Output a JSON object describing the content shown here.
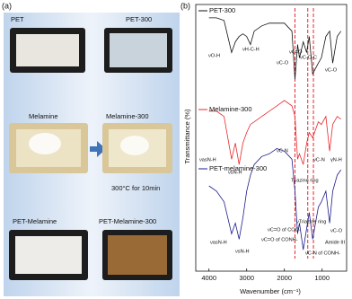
{
  "panel_a": {
    "label": "(a)",
    "samples": [
      "PET",
      "PET-300",
      "Melamine",
      "Melamine-300",
      "PET-Melamine",
      "PET-Melamine-300"
    ],
    "condition": "300°C for 10min"
  },
  "chart_data": {
    "type": "line",
    "label": "(b)",
    "xlabel": "Wavenumber (cm⁻¹)",
    "ylabel": "Transmittance (%)",
    "x": [
      4000,
      3800,
      3600,
      3400,
      3300,
      3200,
      3100,
      3000,
      2900,
      2800,
      2600,
      2400,
      2200,
      2000,
      1800,
      1720,
      1650,
      1600,
      1500,
      1410,
      1340,
      1250,
      1100,
      1020,
      900,
      800,
      720,
      600,
      500
    ],
    "xlim": [
      4350,
      350
    ],
    "xticks": [
      4000,
      3000,
      2000,
      1000
    ],
    "ylim": [
      0,
      100
    ],
    "reference_lines": [
      1720,
      1380,
      1230
    ],
    "reference_color": "#e8262b",
    "series": [
      {
        "name": "PET-300",
        "color": "#111111",
        "values": [
          95,
          95,
          94,
          82,
          86,
          88,
          89,
          88,
          85,
          90,
          92,
          93,
          93,
          93,
          90,
          72,
          85,
          80,
          86,
          82,
          88,
          74,
          78,
          80,
          88,
          90,
          78,
          88,
          90
        ]
      },
      {
        "name": "Melamine-300",
        "color": "#e8262b",
        "values": [
          60,
          60,
          58,
          42,
          48,
          40,
          48,
          52,
          55,
          56,
          58,
          60,
          62,
          64,
          62,
          58,
          42,
          44,
          40,
          48,
          52,
          50,
          56,
          55,
          58,
          45,
          55,
          58,
          57
        ]
      },
      {
        "name": "PET-melamine-300",
        "color": "#1c1c8e",
        "values": [
          32,
          30,
          26,
          14,
          18,
          12,
          20,
          30,
          36,
          40,
          43,
          44,
          46,
          45,
          42,
          30,
          14,
          18,
          8,
          16,
          22,
          12,
          24,
          26,
          30,
          18,
          30,
          36,
          38
        ]
      }
    ],
    "annotations": [
      "νO-H",
      "νH-C-H",
      "νC-O",
      "νC=O",
      "νC-O-C",
      "νC-O",
      "νasN-H",
      "νsN-H",
      "νC-N",
      "Triazine ring",
      "νC-N",
      "γN-H",
      "νasN-H",
      "νsN-H",
      "νTriazine ring",
      "νC=O of COO-",
      "νC=O of CONH-",
      "νC-N of CONH-",
      "Amide III",
      "νC-O"
    ]
  }
}
